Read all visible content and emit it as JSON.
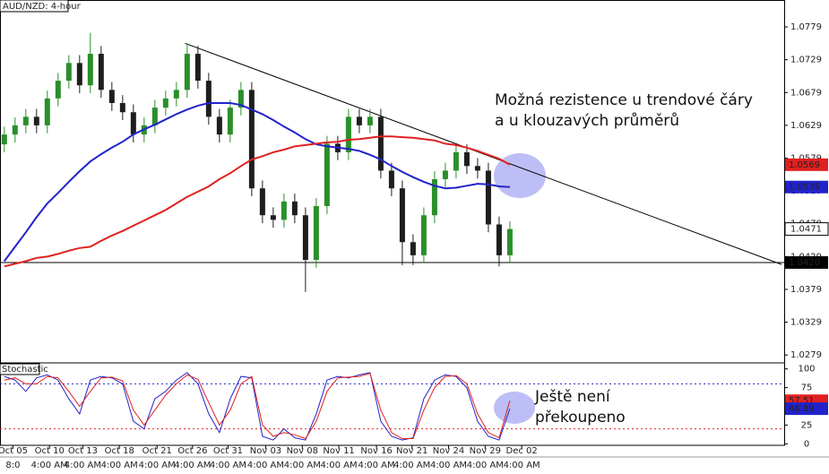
{
  "chart_data": [
    {
      "type": "candlestick",
      "title": "AUD/NZD: 4-hour",
      "xlim": [
        -0.4,
        72.5
      ],
      "ylim": [
        1.0267,
        1.082
      ],
      "yticks": [
        1.0279,
        1.0329,
        1.0379,
        1.0429,
        1.0479,
        1.0529,
        1.0579,
        1.0629,
        1.0679,
        1.0729,
        1.0779
      ],
      "xticks": [
        {
          "value": 0.8,
          "label": "Oct 05"
        },
        {
          "value": 4.2,
          "label": "Oct 10"
        },
        {
          "value": 7.3,
          "label": "Oct 13"
        },
        {
          "value": 10.7,
          "label": "Oct 18"
        },
        {
          "value": 14.2,
          "label": "Oct 21"
        },
        {
          "value": 17.5,
          "label": "Oct 26"
        },
        {
          "value": 20.8,
          "label": "Oct 31"
        },
        {
          "value": 24.3,
          "label": "Nov 03"
        },
        {
          "value": 27.7,
          "label": "Nov 08"
        },
        {
          "value": 31.1,
          "label": "Nov 11"
        },
        {
          "value": 34.6,
          "label": "Nov 16"
        },
        {
          "value": 37.9,
          "label": "Nov 21"
        },
        {
          "value": 41.3,
          "label": "Nov 24"
        },
        {
          "value": 44.7,
          "label": "Nov 29"
        },
        {
          "value": 48.1,
          "label": "Dec 02"
        }
      ],
      "xtick_sublabels": [
        "8:0",
        "4:00 AM",
        "4:00 AM",
        "4:00 AM",
        "4:00 AM",
        "4:00 AM",
        "4:00 AM",
        "4:00 AM",
        "4:00 AM",
        "4:00 AM",
        "4:00 AM",
        "4:00 AM",
        "4:00 AM",
        "4:00 AM",
        "4:00 AM"
      ],
      "up_color": "#2a8f2a",
      "down_color": "#1e1e1e",
      "open": [
        1.06,
        1.0615,
        1.0629,
        1.0642,
        1.0629,
        1.067,
        1.0697,
        1.0724,
        1.069,
        1.0738,
        1.0683,
        1.0663,
        1.0649,
        1.0615,
        1.0629,
        1.0656,
        1.067,
        1.0683,
        1.0738,
        1.0697,
        1.0642,
        1.0615,
        1.0656,
        1.0683,
        1.0533,
        1.0492,
        1.0485,
        1.0513,
        1.0492,
        1.0424,
        1.0506,
        1.0601,
        1.0588,
        1.0642,
        1.0629,
        1.0642,
        1.056,
        1.0533,
        1.0451,
        1.0431,
        1.0492,
        1.0547,
        1.056,
        1.0588,
        1.0567,
        1.056,
        1.0478,
        1.0431
      ],
      "high": [
        1.0627,
        1.0641,
        1.0654,
        1.0654,
        1.0682,
        1.0709,
        1.0736,
        1.0736,
        1.077,
        1.075,
        1.0695,
        1.0675,
        1.0661,
        1.0641,
        1.0668,
        1.0682,
        1.0695,
        1.0754,
        1.075,
        1.0709,
        1.0654,
        1.0668,
        1.0695,
        1.0695,
        1.0545,
        1.0504,
        1.0525,
        1.0525,
        1.0504,
        1.0518,
        1.0613,
        1.0613,
        1.0654,
        1.0654,
        1.0654,
        1.0654,
        1.0572,
        1.0545,
        1.0463,
        1.0504,
        1.0559,
        1.0572,
        1.06,
        1.06,
        1.0579,
        1.0572,
        1.049,
        1.0483
      ],
      "low": [
        1.0588,
        1.0603,
        1.0617,
        1.0617,
        1.0617,
        1.0658,
        1.0685,
        1.0678,
        1.0678,
        1.0671,
        1.0651,
        1.0637,
        1.0603,
        1.0603,
        1.0617,
        1.0644,
        1.0658,
        1.0671,
        1.0685,
        1.063,
        1.0603,
        1.0603,
        1.0644,
        1.0521,
        1.048,
        1.0473,
        1.0473,
        1.048,
        1.0375,
        1.0412,
        1.0494,
        1.0576,
        1.0576,
        1.0617,
        1.0617,
        1.0548,
        1.0521,
        1.0416,
        1.0416,
        1.0419,
        1.048,
        1.0535,
        1.0548,
        1.0555,
        1.0548,
        1.0466,
        1.0414,
        1.0419
      ],
      "close": [
        1.0615,
        1.0629,
        1.0642,
        1.0629,
        1.067,
        1.0697,
        1.0724,
        1.069,
        1.0738,
        1.0683,
        1.0663,
        1.0649,
        1.0615,
        1.0629,
        1.0656,
        1.067,
        1.0683,
        1.0738,
        1.0697,
        1.0642,
        1.0615,
        1.0656,
        1.0683,
        1.0533,
        1.0492,
        1.0485,
        1.0513,
        1.0492,
        1.0424,
        1.0506,
        1.0601,
        1.0588,
        1.0642,
        1.0629,
        1.0642,
        1.056,
        1.0533,
        1.0451,
        1.0431,
        1.0492,
        1.0547,
        1.056,
        1.0588,
        1.0567,
        1.056,
        1.0478,
        1.0431,
        1.0471
      ],
      "series": [
        {
          "color": "#2222cc",
          "values": [
            1.0422,
            1.0444,
            1.0466,
            1.0489,
            1.051,
            1.0526,
            1.0543,
            1.0559,
            1.0574,
            1.0585,
            1.0595,
            1.0604,
            1.0615,
            1.0623,
            1.063,
            1.0638,
            1.0646,
            1.0653,
            1.0659,
            1.0663,
            1.0663,
            1.0663,
            1.066,
            1.0653,
            1.0646,
            1.0637,
            1.0627,
            1.0618,
            1.0608,
            1.06,
            1.0597,
            1.0595,
            1.0593,
            1.059,
            1.0584,
            1.0577,
            1.0567,
            1.0558,
            1.055,
            1.0543,
            1.0537,
            1.0533,
            1.0534,
            1.0537,
            1.054,
            1.0539,
            1.0536,
            1.0535
          ]
        },
        {
          "color": "#e02020",
          "values": [
            1.0414,
            1.0418,
            1.0422,
            1.0427,
            1.0429,
            1.0433,
            1.0438,
            1.0442,
            1.0444,
            1.0453,
            1.0461,
            1.0468,
            1.0476,
            1.0484,
            1.0492,
            1.05,
            1.051,
            1.052,
            1.0528,
            1.0536,
            1.0547,
            1.0556,
            1.0567,
            1.0577,
            1.0582,
            1.0588,
            1.0592,
            1.0597,
            1.0599,
            1.0601,
            1.0603,
            1.0604,
            1.0607,
            1.0608,
            1.061,
            1.0612,
            1.0612,
            1.0611,
            1.061,
            1.0608,
            1.0606,
            1.0601,
            1.0599,
            1.0595,
            1.059,
            1.0584,
            1.0578,
            1.0569
          ]
        }
      ],
      "trendline": {
        "x": [
          16.8,
          72.25
        ],
        "y": [
          1.0754,
          1.0417
        ]
      },
      "support": {
        "value": 1.042,
        "label": "1.0420"
      },
      "annotations": [
        "Možná rezistence u trendové čáry",
        "a u klouzavých průměrů"
      ]
    },
    {
      "type": "line",
      "title": "Stochastic",
      "xlim": [
        -0.4,
        72.5
      ],
      "ylim": [
        -2,
        108
      ],
      "yticks": [
        0,
        25,
        50,
        75,
        100
      ],
      "levels": [
        20,
        80
      ],
      "series": [
        {
          "color": "#2222cc",
          "values": [
            90,
            85,
            70,
            88,
            92,
            85,
            60,
            40,
            85,
            90,
            88,
            80,
            30,
            20,
            60,
            70,
            85,
            95,
            80,
            40,
            15,
            60,
            90,
            88,
            10,
            5,
            20,
            8,
            5,
            40,
            85,
            90,
            88,
            92,
            95,
            30,
            10,
            5,
            8,
            60,
            85,
            92,
            90,
            75,
            30,
            10,
            5,
            46.89
          ]
        },
        {
          "color": "#e02020",
          "values": [
            85,
            88,
            80,
            80,
            90,
            88,
            70,
            50,
            70,
            88,
            89,
            84,
            45,
            25,
            45,
            65,
            80,
            92,
            86,
            55,
            25,
            45,
            80,
            90,
            25,
            10,
            15,
            12,
            7,
            30,
            70,
            88,
            89,
            90,
            94,
            45,
            15,
            7,
            7,
            45,
            75,
            90,
            91,
            80,
            40,
            15,
            8,
            57.51
          ]
        }
      ],
      "annotations": [
        "Ještě není",
        "překoupeno"
      ]
    }
  ]
}
